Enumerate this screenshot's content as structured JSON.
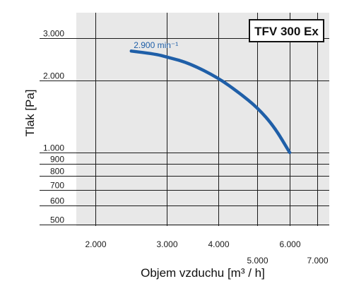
{
  "chart_data": {
    "type": "line",
    "title": "TFV 300 Ex",
    "xlabel": "Objem vzduchu [m³ / h]",
    "ylabel": "Tlak [Pa]",
    "x_scale": "log",
    "y_scale": "log",
    "xlim": [
      1750,
      7400
    ],
    "ylim": [
      480,
      4000
    ],
    "grid": true,
    "x_ticks": [
      {
        "value": 2000,
        "label": "2.000",
        "row": 1
      },
      {
        "value": 3000,
        "label": "3.000",
        "row": 1
      },
      {
        "value": 4000,
        "label": "4.000",
        "row": 1
      },
      {
        "value": 5000,
        "label": "5.000",
        "row": 2
      },
      {
        "value": 6000,
        "label": "6.000",
        "row": 1
      },
      {
        "value": 7000,
        "label": "7.000",
        "row": 2
      }
    ],
    "y_ticks": [
      {
        "value": 3000,
        "label": "3.000"
      },
      {
        "value": 2000,
        "label": "2.000"
      },
      {
        "value": 1000,
        "label": "1.000"
      },
      {
        "value": 900,
        "label": "900"
      },
      {
        "value": 800,
        "label": "800"
      },
      {
        "value": 700,
        "label": "700"
      },
      {
        "value": 600,
        "label": "600"
      },
      {
        "value": 500,
        "label": "500"
      }
    ],
    "series": [
      {
        "name": "2.900 min⁻¹",
        "color": "#1f5fa8",
        "points": [
          {
            "x": 2450,
            "y": 2650
          },
          {
            "x": 2800,
            "y": 2580
          },
          {
            "x": 3000,
            "y": 2500
          },
          {
            "x": 3400,
            "y": 2360
          },
          {
            "x": 4000,
            "y": 2050
          },
          {
            "x": 4500,
            "y": 1780
          },
          {
            "x": 5000,
            "y": 1540
          },
          {
            "x": 5500,
            "y": 1280
          },
          {
            "x": 6000,
            "y": 1000
          }
        ]
      }
    ]
  },
  "colors": {
    "plot_background": "#e8e8e8",
    "grid": "#1a1a1a",
    "curve": "#1f5fa8"
  }
}
